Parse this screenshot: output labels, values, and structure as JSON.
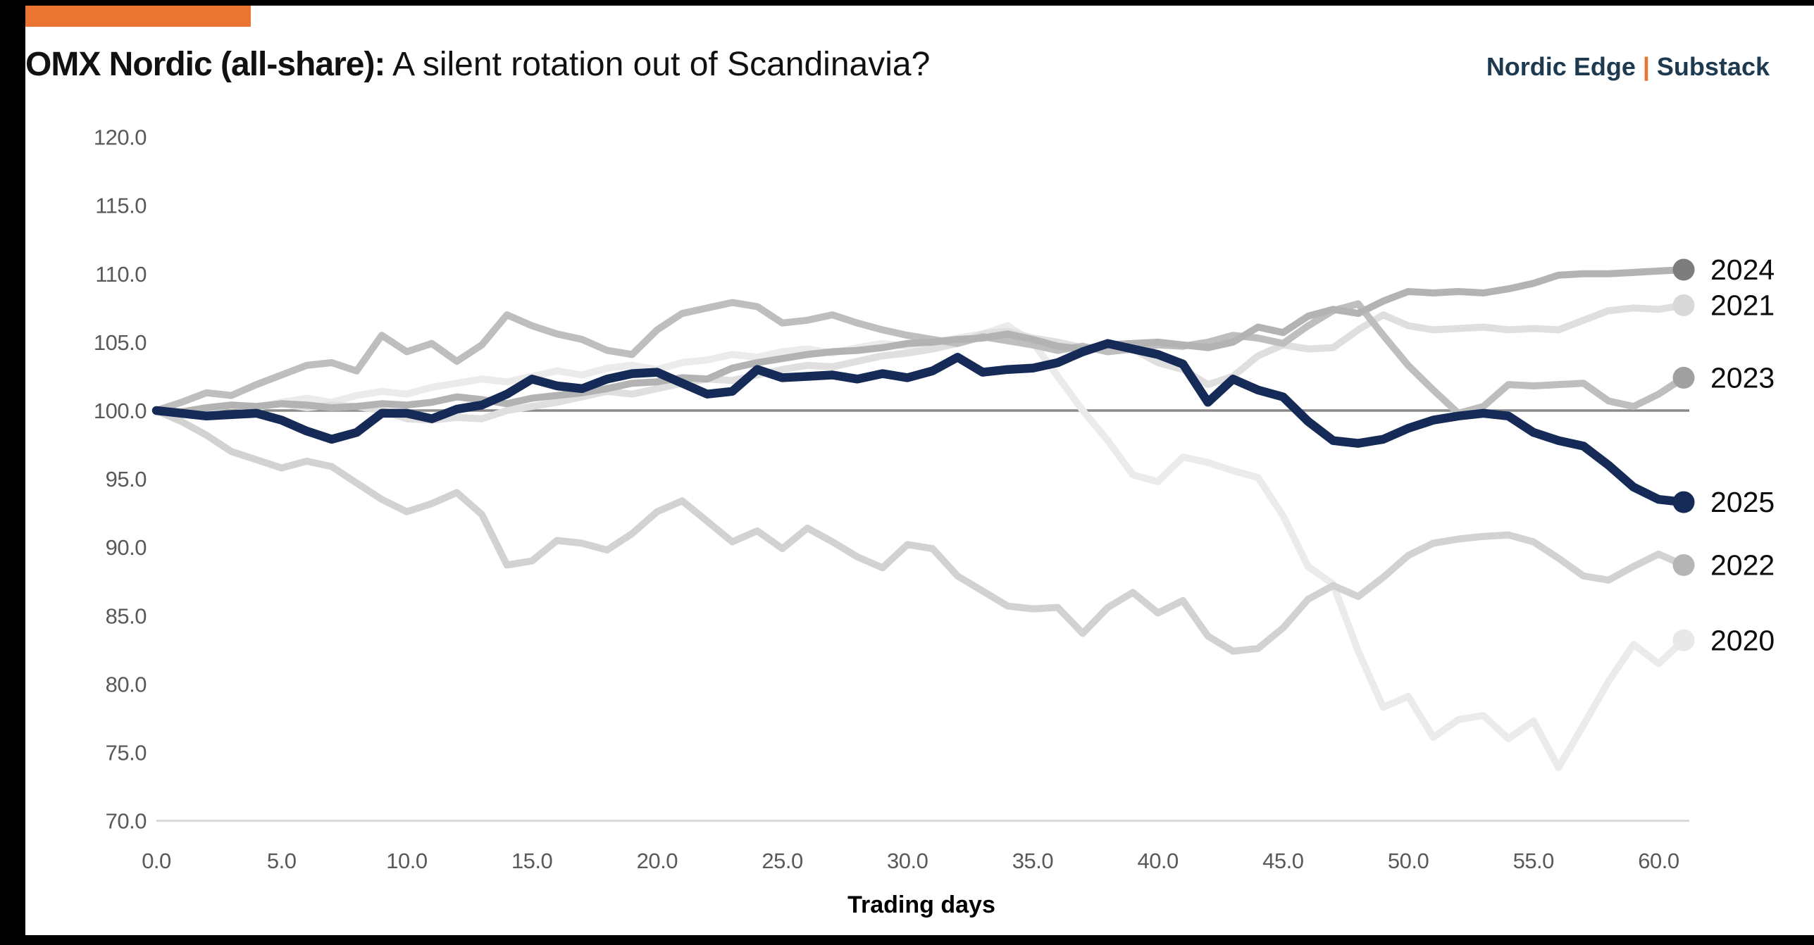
{
  "frame": {
    "border_color": "#000000",
    "accent_bar_color": "#E87532"
  },
  "header": {
    "title_bold": "OMX Nordic (all-share):",
    "title_regular": " A silent rotation out of Scandinavia?",
    "brand_name": "Nordic Edge",
    "brand_separator": "|",
    "brand_platform": "Substack",
    "brand_color": "#1D3A50",
    "separator_color": "#E87532"
  },
  "chart_data": {
    "type": "line",
    "title": "OMX Nordic (all-share): A silent rotation out of Scandinavia?",
    "xlabel": "Trading days",
    "ylabel": "",
    "xlim": [
      0,
      61
    ],
    "ylim": [
      70,
      120
    ],
    "xticks": [
      "0.0",
      "5.0",
      "10.0",
      "15.0",
      "20.0",
      "25.0",
      "30.0",
      "35.0",
      "40.0",
      "45.0",
      "50.0",
      "55.0",
      "60.0"
    ],
    "yticks": [
      "70.0",
      "75.0",
      "80.0",
      "85.0",
      "90.0",
      "95.0",
      "100.0",
      "105.0",
      "110.0",
      "115.0",
      "120.0"
    ],
    "grid": false,
    "reference_line": 100.0,
    "reference_line_color": "#8A8A8A",
    "baseline_color": "#D9D9D9",
    "legend_position": "right-end-labels",
    "x_step": 1,
    "series": [
      {
        "name": "2020",
        "line_color": "#EBEBEB",
        "marker_color": "#E8E8E8",
        "end_value": 83.2,
        "values": [
          100.0,
          99.7,
          100.1,
          100.4,
          100.2,
          100.6,
          100.9,
          100.6,
          101.1,
          101.4,
          101.2,
          101.7,
          102.0,
          102.3,
          102.1,
          102.5,
          102.9,
          102.6,
          103.1,
          103.3,
          103.0,
          103.5,
          103.7,
          104.1,
          103.9,
          104.3,
          104.5,
          104.2,
          104.6,
          104.9,
          104.7,
          105.0,
          105.3,
          105.6,
          106.2,
          105.0,
          102.5,
          100.0,
          97.8,
          95.3,
          94.8,
          96.6,
          96.2,
          95.6,
          95.1,
          92.3,
          88.6,
          87.3,
          82.4,
          78.3,
          79.1,
          76.1,
          77.4,
          77.7,
          76.0,
          77.3,
          73.9,
          77.0,
          80.2,
          82.9,
          81.5,
          83.2
        ]
      },
      {
        "name": "2021",
        "line_color": "#DFDFDF",
        "marker_color": "#D8D8D8",
        "end_value": 107.7,
        "values": [
          100.0,
          99.9,
          100.2,
          100.4,
          100.3,
          100.5,
          100.2,
          100.4,
          100.3,
          100.0,
          99.4,
          99.3,
          99.5,
          99.4,
          100.0,
          100.3,
          100.6,
          101.0,
          101.4,
          101.2,
          101.6,
          102.0,
          102.3,
          102.2,
          102.6,
          103.0,
          103.3,
          103.2,
          103.6,
          104.0,
          104.2,
          104.5,
          104.9,
          105.6,
          105.8,
          105.3,
          105.0,
          104.6,
          104.4,
          104.5,
          103.5,
          103.0,
          101.9,
          102.5,
          104.0,
          104.8,
          104.5,
          104.6,
          105.9,
          107.0,
          106.2,
          105.9,
          106.0,
          106.1,
          105.9,
          106.0,
          105.9,
          106.6,
          107.3,
          107.5,
          107.4,
          107.7
        ]
      },
      {
        "name": "2022",
        "line_color": "#D2D2D2",
        "marker_color": "#B5B5B5",
        "end_value": 88.7,
        "values": [
          100.0,
          99.2,
          98.2,
          97.0,
          96.4,
          95.8,
          96.3,
          95.9,
          94.7,
          93.5,
          92.6,
          93.2,
          94.0,
          92.4,
          88.7,
          89.0,
          90.5,
          90.3,
          89.8,
          91.0,
          92.6,
          93.4,
          91.9,
          90.4,
          91.2,
          89.9,
          91.4,
          90.4,
          89.3,
          88.5,
          90.2,
          89.9,
          87.9,
          86.8,
          85.7,
          85.5,
          85.6,
          83.7,
          85.6,
          86.7,
          85.2,
          86.1,
          83.5,
          82.4,
          82.6,
          84.1,
          86.2,
          87.2,
          86.4,
          87.8,
          89.4,
          90.3,
          90.6,
          90.8,
          90.9,
          90.4,
          89.2,
          87.9,
          87.6,
          88.6,
          89.5,
          88.7
        ]
      },
      {
        "name": "2023",
        "line_color": "#BEBEBE",
        "marker_color": "#A0A0A0",
        "end_value": 102.4,
        "values": [
          100.0,
          100.6,
          101.3,
          101.1,
          101.9,
          102.6,
          103.3,
          103.5,
          102.9,
          105.5,
          104.3,
          104.9,
          103.6,
          104.8,
          107.0,
          106.2,
          105.6,
          105.2,
          104.4,
          104.1,
          105.9,
          107.1,
          107.5,
          107.9,
          107.6,
          106.4,
          106.6,
          107.0,
          106.4,
          105.9,
          105.5,
          105.2,
          104.9,
          105.4,
          105.1,
          104.8,
          104.4,
          104.7,
          104.3,
          104.5,
          104.8,
          104.7,
          105.0,
          105.5,
          105.3,
          104.9,
          106.2,
          107.3,
          107.8,
          105.5,
          103.3,
          101.5,
          99.8,
          100.3,
          101.9,
          101.8,
          101.9,
          102.0,
          100.7,
          100.3,
          101.2,
          102.4
        ]
      },
      {
        "name": "2024",
        "line_color": "#B3B3B3",
        "marker_color": "#7D7D7D",
        "end_value": 110.3,
        "values": [
          100.0,
          99.9,
          100.2,
          100.4,
          100.3,
          100.5,
          100.4,
          100.2,
          100.3,
          100.5,
          100.4,
          100.6,
          101.0,
          100.8,
          100.5,
          100.9,
          101.1,
          101.3,
          101.6,
          102.0,
          102.1,
          102.4,
          102.3,
          103.1,
          103.5,
          103.8,
          104.1,
          104.3,
          104.4,
          104.6,
          104.9,
          105.0,
          105.2,
          105.3,
          105.6,
          105.2,
          104.7,
          104.5,
          104.8,
          104.9,
          105.0,
          104.8,
          104.6,
          105.0,
          106.1,
          105.7,
          106.9,
          107.4,
          107.1,
          108.0,
          108.7,
          108.6,
          108.7,
          108.6,
          108.9,
          109.3,
          109.9,
          110.0,
          110.0,
          110.1,
          110.2,
          110.3
        ]
      },
      {
        "name": "2025",
        "line_color": "#152A56",
        "marker_color": "#152A56",
        "end_value": 93.3,
        "values": [
          100.0,
          99.8,
          99.6,
          99.7,
          99.8,
          99.3,
          98.5,
          97.9,
          98.4,
          99.8,
          99.8,
          99.4,
          100.1,
          100.4,
          101.2,
          102.3,
          101.8,
          101.6,
          102.3,
          102.7,
          102.8,
          102.0,
          101.2,
          101.4,
          103.0,
          102.4,
          102.5,
          102.6,
          102.3,
          102.7,
          102.4,
          102.9,
          103.9,
          102.8,
          103.0,
          103.1,
          103.5,
          104.3,
          104.9,
          104.5,
          104.1,
          103.4,
          100.6,
          102.3,
          101.5,
          101.0,
          99.2,
          97.8,
          97.6,
          97.9,
          98.7,
          99.3,
          99.6,
          99.8,
          99.6,
          98.4,
          97.8,
          97.4,
          96.0,
          94.4,
          93.5,
          93.3
        ]
      }
    ]
  }
}
